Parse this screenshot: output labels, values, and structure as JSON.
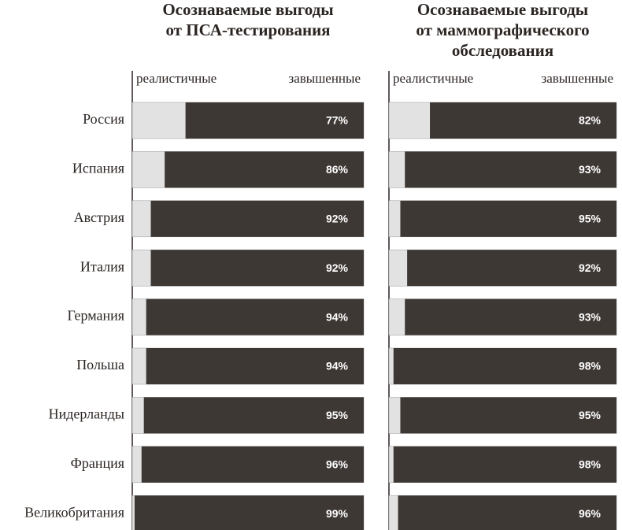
{
  "chart_data": [
    {
      "type": "bar",
      "orientation": "stacked-horizontal",
      "title": [
        "Осознаваемые выгоды",
        "от ПСА-тестирования"
      ],
      "categories": [
        "Россия",
        "Испания",
        "Австрия",
        "Италия",
        "Германия",
        "Польша",
        "Нидерланды",
        "Франция",
        "Великобритания"
      ],
      "series": [
        {
          "name": "реалистичные",
          "color": "#e2e2e2"
        },
        {
          "name": "завышенные",
          "color": "#3e3835",
          "values": [
            77,
            86,
            92,
            92,
            94,
            94,
            95,
            96,
            99
          ],
          "value_labels": [
            "77%",
            "86%",
            "92%",
            "92%",
            "94%",
            "94%",
            "95%",
            "96%",
            "99%"
          ]
        }
      ],
      "xlim": [
        0,
        100
      ]
    },
    {
      "type": "bar",
      "orientation": "stacked-horizontal",
      "title": [
        "Осознаваемые выгоды",
        "от маммографического",
        "обследования"
      ],
      "series": [
        {
          "name": "реалистичные",
          "color": "#e2e2e2"
        },
        {
          "name": "завышенные",
          "color": "#3e3835",
          "values": [
            82,
            93,
            95,
            92,
            93,
            98,
            95,
            98,
            96
          ],
          "value_labels": [
            "82%",
            "93%",
            "95%",
            "92%",
            "93%",
            "98%",
            "95%",
            "98%",
            "96%"
          ]
        }
      ],
      "xlim": [
        0,
        100
      ]
    }
  ]
}
